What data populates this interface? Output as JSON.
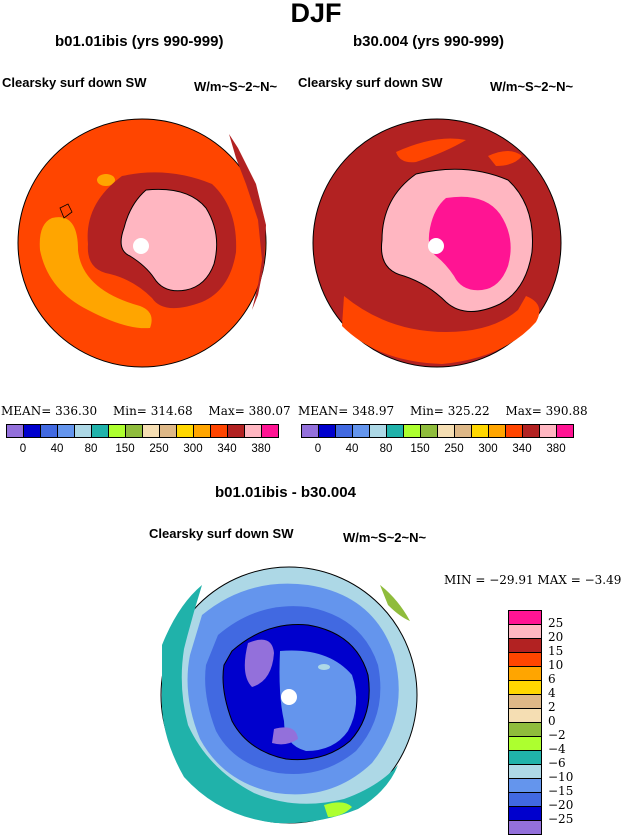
{
  "page_title": "DJF",
  "panels": [
    {
      "title": "b01.01ibis (yrs 990-999)",
      "variable": "Clearsky surf down SW",
      "units": "W/m~S~2~N~",
      "mean_label": "MEAN=",
      "mean": "336.30",
      "min_label": "Min=",
      "min": "314.68",
      "max_label": "Max=",
      "max": "380.07"
    },
    {
      "title": "b30.004 (yrs 990-999)",
      "variable": "Clearsky surf down SW",
      "units": "W/m~S~2~N~",
      "mean_label": "MEAN=",
      "mean": "348.97",
      "min_label": "Min=",
      "min": "325.22",
      "max_label": "Max=",
      "max": "390.88"
    }
  ],
  "diff": {
    "title": "b01.01ibis - b30.004",
    "variable": "Clearsky surf down SW",
    "units": "W/m~S~2~N~",
    "minmax": "MIN = −29.91 MAX =  −3.49"
  },
  "colors": {
    "abs_bar": [
      "#9370db",
      "#0000cd",
      "#4169e1",
      "#6495ed",
      "#add8e6",
      "#20b2aa",
      "#adff2f",
      "#8fbc3c",
      "#f5deb3",
      "#deb887",
      "#ffd700",
      "#ffa500",
      "#ff4500",
      "#b22222",
      "#ffb6c1",
      "#ff1493"
    ],
    "diff_bar": [
      "#ff1493",
      "#ffb6c1",
      "#b22222",
      "#ff4500",
      "#ffa500",
      "#ffd700",
      "#deb887",
      "#f5deb3",
      "#8fbc3c",
      "#adff2f",
      "#20b2aa",
      "#add8e6",
      "#6495ed",
      "#4169e1",
      "#0000cd",
      "#9370db"
    ]
  },
  "chart_data": [
    {
      "type": "heatmap",
      "title": "b01.01ibis (yrs 990-999)",
      "variable": "Clearsky surf down SW",
      "units": "W/m~S~2~N~",
      "levels": [
        0,
        40,
        80,
        150,
        250,
        300,
        340,
        380
      ],
      "level_labels": [
        "0",
        "40",
        "80",
        "150",
        "250",
        "300",
        "340",
        "380"
      ],
      "stats": {
        "mean": 336.3,
        "min": 314.68,
        "max": 380.07
      }
    },
    {
      "type": "heatmap",
      "title": "b30.004 (yrs 990-999)",
      "variable": "Clearsky surf down SW",
      "units": "W/m~S~2~N~",
      "levels": [
        0,
        40,
        80,
        150,
        250,
        300,
        340,
        380
      ],
      "level_labels": [
        "0",
        "40",
        "80",
        "150",
        "250",
        "300",
        "340",
        "380"
      ],
      "stats": {
        "mean": 348.97,
        "min": 325.22,
        "max": 390.88
      }
    },
    {
      "type": "heatmap",
      "title": "b01.01ibis - b30.004",
      "variable": "Clearsky surf down SW",
      "units": "W/m~S~2~N~",
      "levels": [
        25,
        20,
        15,
        10,
        6,
        4,
        2,
        0,
        -2,
        -4,
        -6,
        -10,
        -15,
        -20,
        -25
      ],
      "level_labels": [
        "25",
        "20",
        "15",
        "10",
        "6",
        "4",
        "2",
        "0",
        "−2",
        "−4",
        "−6",
        "−10",
        "−15",
        "−20",
        "−25"
      ],
      "stats": {
        "min": -29.91,
        "max": -3.49
      }
    }
  ]
}
